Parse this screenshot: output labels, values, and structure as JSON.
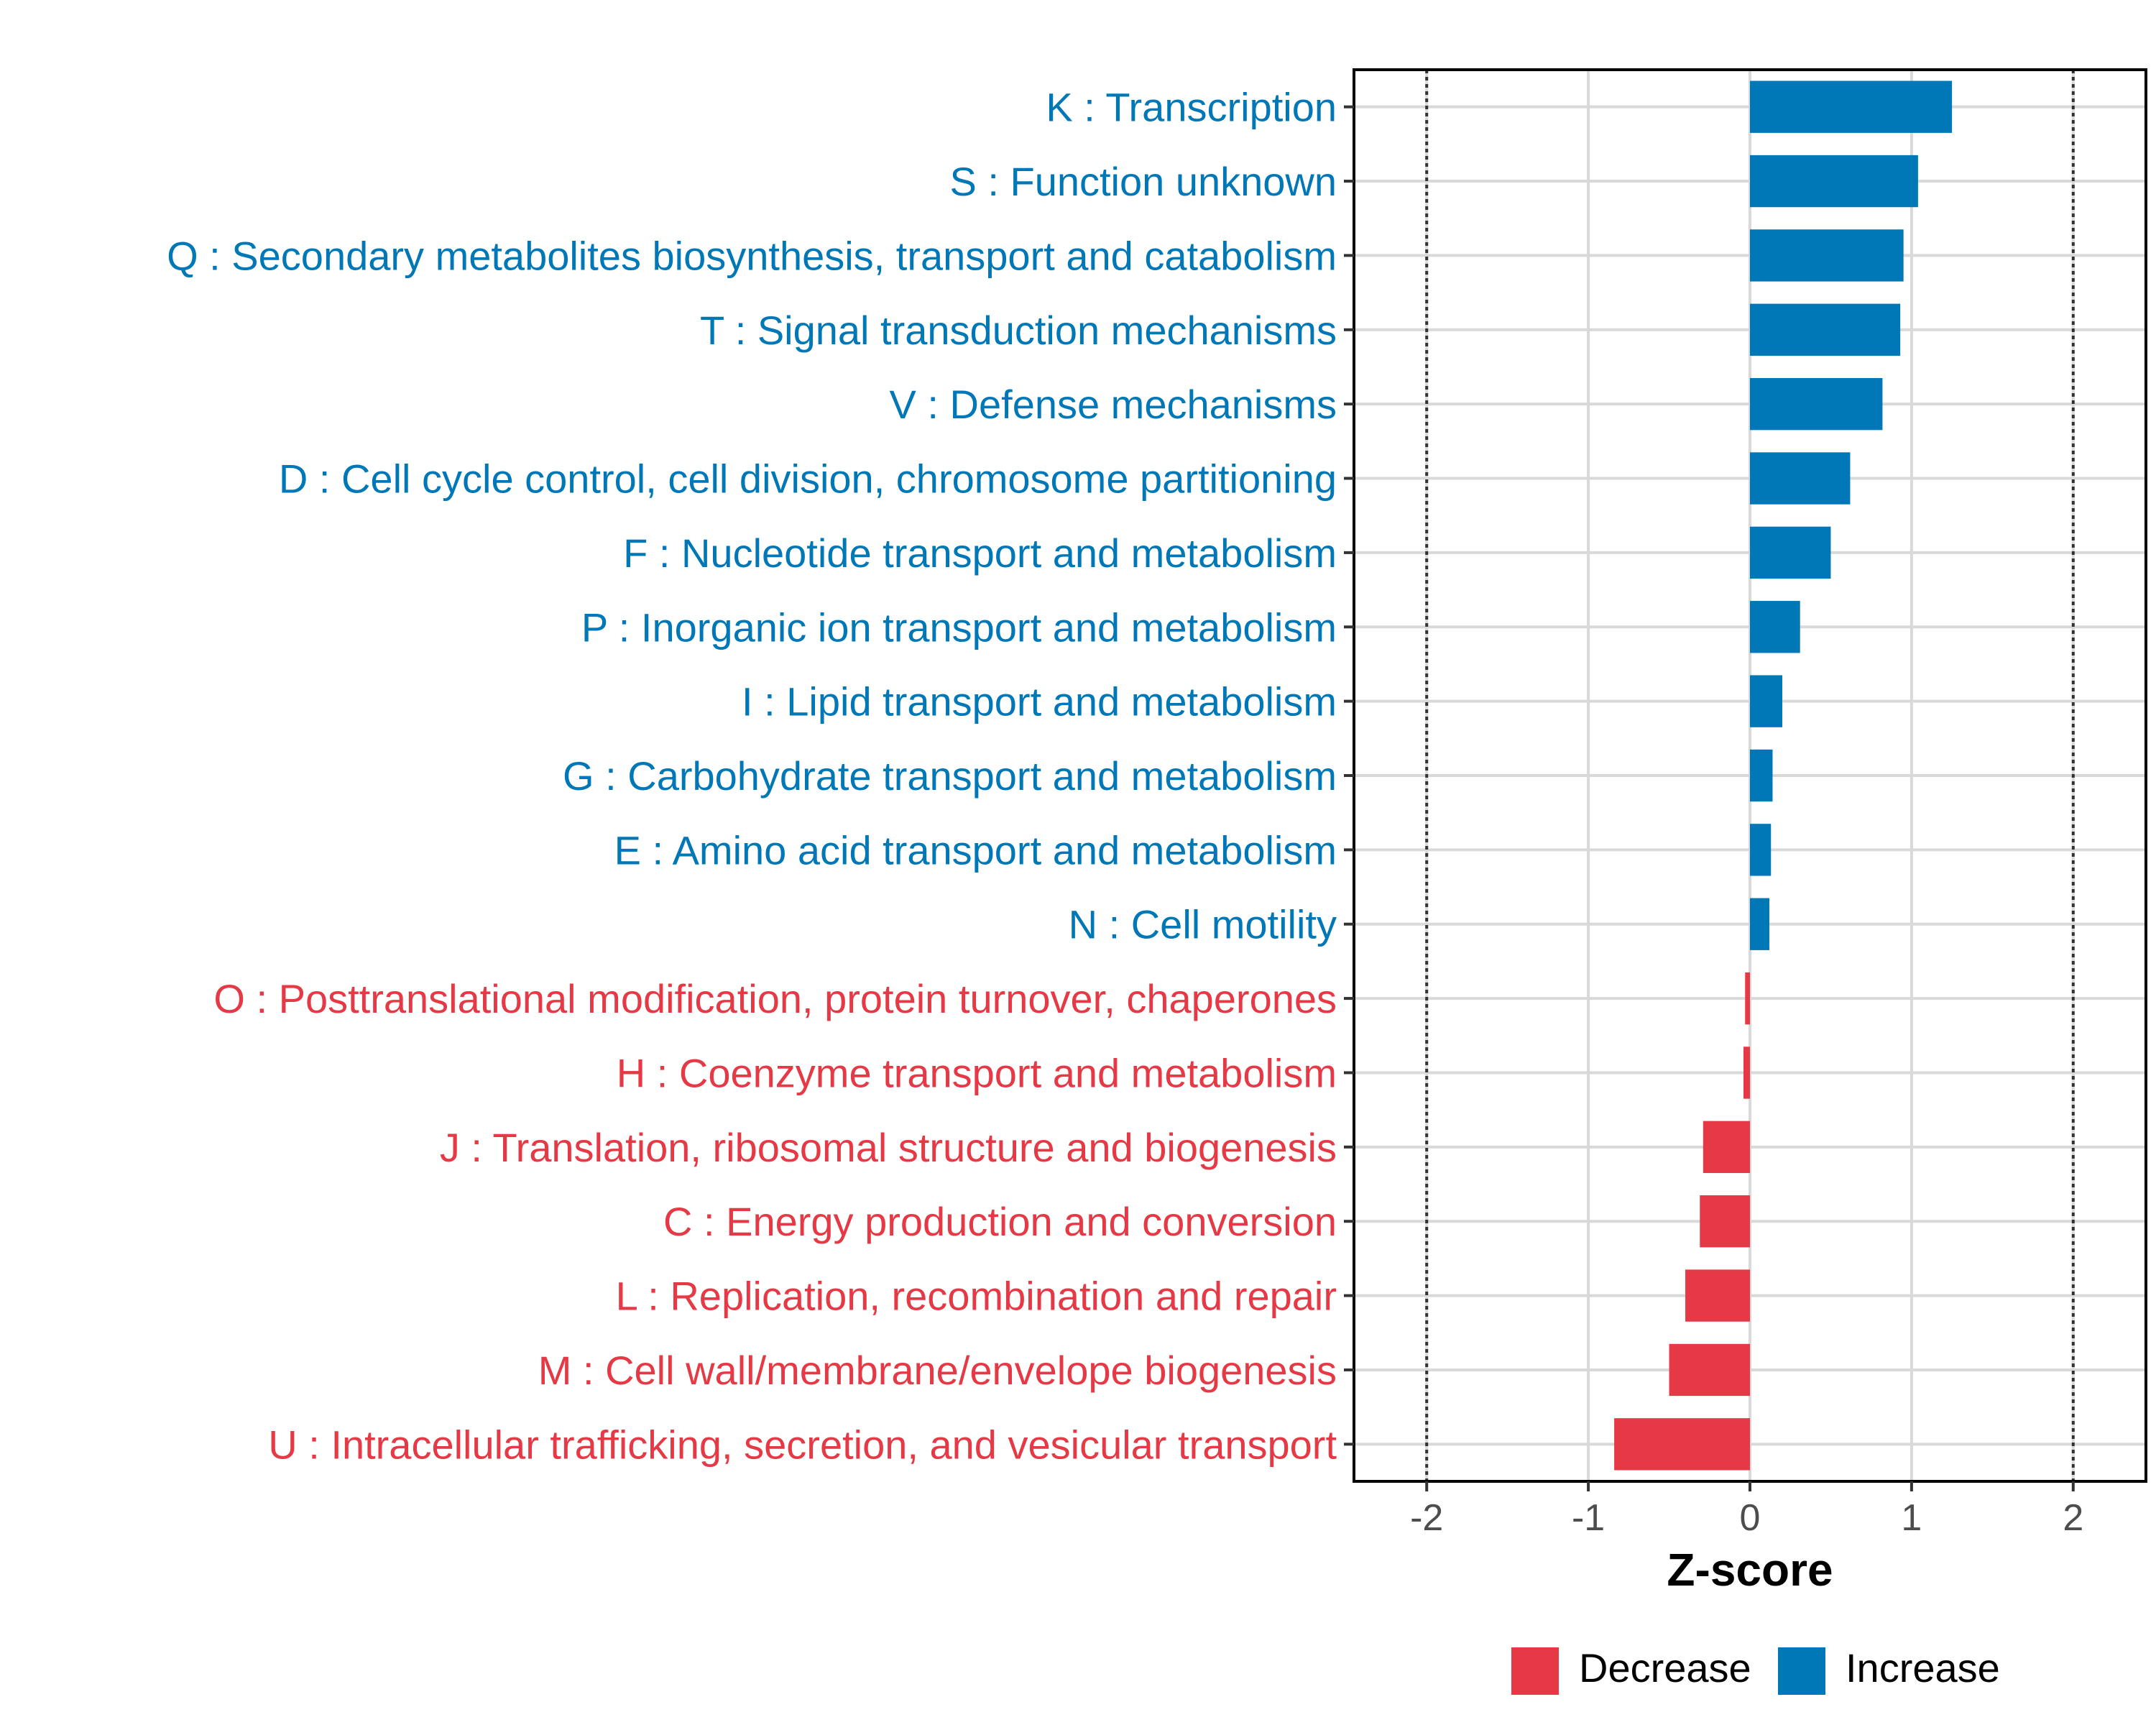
{
  "chart_data": {
    "type": "bar",
    "orientation": "horizontal",
    "xlabel": "Z-score",
    "xlim": [
      -2.45,
      2.45
    ],
    "x_ticks": [
      -2,
      -1,
      0,
      1,
      2
    ],
    "x_tick_labels": [
      "-2",
      "-1",
      "0",
      "1",
      "2"
    ],
    "reference_lines": [
      -2,
      2
    ],
    "grid": true,
    "legend_position": "bottom",
    "colors": {
      "Decrease": "#e63946",
      "Increase": "#0077b6"
    },
    "legend": [
      {
        "name": "Decrease",
        "color": "#e63946"
      },
      {
        "name": "Increase",
        "color": "#0077b6"
      }
    ],
    "bars": [
      {
        "label": "K : Transcription",
        "value": 1.25,
        "direction": "Increase"
      },
      {
        "label": "S : Function unknown",
        "value": 1.04,
        "direction": "Increase"
      },
      {
        "label": "Q : Secondary metabolites biosynthesis, transport and catabolism",
        "value": 0.95,
        "direction": "Increase"
      },
      {
        "label": "T : Signal transduction mechanisms",
        "value": 0.93,
        "direction": "Increase"
      },
      {
        "label": "V : Defense mechanisms",
        "value": 0.82,
        "direction": "Increase"
      },
      {
        "label": "D : Cell cycle control, cell division, chromosome partitioning",
        "value": 0.62,
        "direction": "Increase"
      },
      {
        "label": "F : Nucleotide transport and metabolism",
        "value": 0.5,
        "direction": "Increase"
      },
      {
        "label": "P : Inorganic ion transport and metabolism",
        "value": 0.31,
        "direction": "Increase"
      },
      {
        "label": "I : Lipid transport and metabolism",
        "value": 0.2,
        "direction": "Increase"
      },
      {
        "label": "G : Carbohydrate transport and metabolism",
        "value": 0.14,
        "direction": "Increase"
      },
      {
        "label": "E : Amino acid transport and metabolism",
        "value": 0.13,
        "direction": "Increase"
      },
      {
        "label": "N : Cell motility",
        "value": 0.12,
        "direction": "Increase"
      },
      {
        "label": "O : Posttranslational modification, protein turnover, chaperones",
        "value": -0.03,
        "direction": "Decrease"
      },
      {
        "label": "H : Coenzyme transport and metabolism",
        "value": -0.04,
        "direction": "Decrease"
      },
      {
        "label": "J : Translation, ribosomal structure and biogenesis",
        "value": -0.29,
        "direction": "Decrease"
      },
      {
        "label": "C : Energy production and conversion",
        "value": -0.31,
        "direction": "Decrease"
      },
      {
        "label": "L : Replication, recombination and repair",
        "value": -0.4,
        "direction": "Decrease"
      },
      {
        "label": "M : Cell wall/membrane/envelope biogenesis",
        "value": -0.5,
        "direction": "Decrease"
      },
      {
        "label": "U : Intracellular trafficking, secretion, and vesicular transport",
        "value": -0.84,
        "direction": "Decrease"
      }
    ]
  }
}
